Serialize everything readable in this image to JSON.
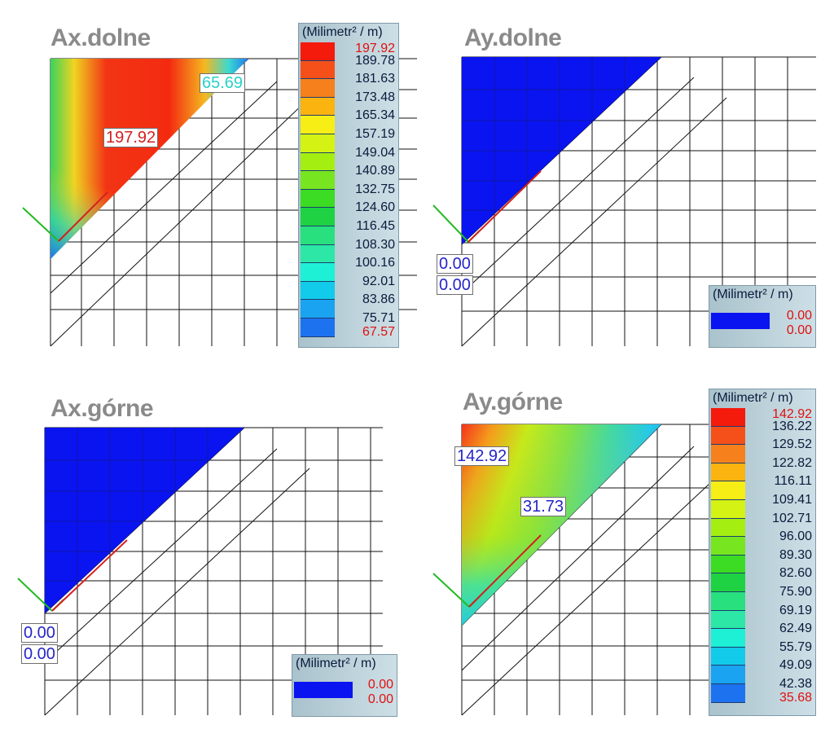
{
  "units": "(Milimetr² / m)",
  "chart_data": [
    {
      "type": "heatmap",
      "title": "Ax.dolne",
      "legend": {
        "labels": [
          "197.92",
          "189.78",
          "181.63",
          "173.48",
          "165.34",
          "157.19",
          "149.04",
          "140.89",
          "132.75",
          "124.60",
          "116.45",
          "108.30",
          "100.16",
          "92.01",
          "83.86",
          "75.71",
          "67.57"
        ],
        "colors": [
          "#f41a0c",
          "#f6501a",
          "#f5801c",
          "#fbb30f",
          "#f6ee15",
          "#d4f214",
          "#a5ee12",
          "#77e51f",
          "#3bdc23",
          "#1ed243",
          "#29e07e",
          "#2ce7a6",
          "#1ef0d6",
          "#12cbea",
          "#1aa3f0",
          "#1d72f0"
        ],
        "min": "67.57",
        "max": "197.92"
      },
      "annotations": [
        "197.92",
        "65.69"
      ]
    },
    {
      "type": "heatmap",
      "title": "Ay.dolne",
      "legend": {
        "labels": [
          "0.00",
          "0.00"
        ],
        "colors": [
          "#0a14f0"
        ],
        "min": "0.00",
        "max": "0.00"
      },
      "annotations": [
        "0.00",
        "0.00"
      ]
    },
    {
      "type": "heatmap",
      "title": "Ax.górne",
      "legend": {
        "labels": [
          "0.00",
          "0.00"
        ],
        "colors": [
          "#0a14f0"
        ],
        "min": "0.00",
        "max": "0.00"
      },
      "annotations": [
        "0.00",
        "0.00"
      ]
    },
    {
      "type": "heatmap",
      "title": "Ay.górne",
      "legend": {
        "labels": [
          "142.92",
          "136.22",
          "129.52",
          "122.82",
          "116.11",
          "109.41",
          "102.71",
          "96.00",
          "89.30",
          "82.60",
          "75.90",
          "69.19",
          "62.49",
          "55.79",
          "49.09",
          "42.38",
          "35.68"
        ],
        "colors": [
          "#f41a0c",
          "#f6501a",
          "#f5801c",
          "#fbb30f",
          "#f6ee15",
          "#d4f214",
          "#a5ee12",
          "#77e51f",
          "#3bdc23",
          "#1ed243",
          "#29e07e",
          "#2ce7a6",
          "#1ef0d6",
          "#12cbea",
          "#1aa3f0",
          "#1d72f0"
        ],
        "min": "35.68",
        "max": "142.92"
      },
      "annotations": [
        "142.92",
        "31.73"
      ]
    }
  ]
}
